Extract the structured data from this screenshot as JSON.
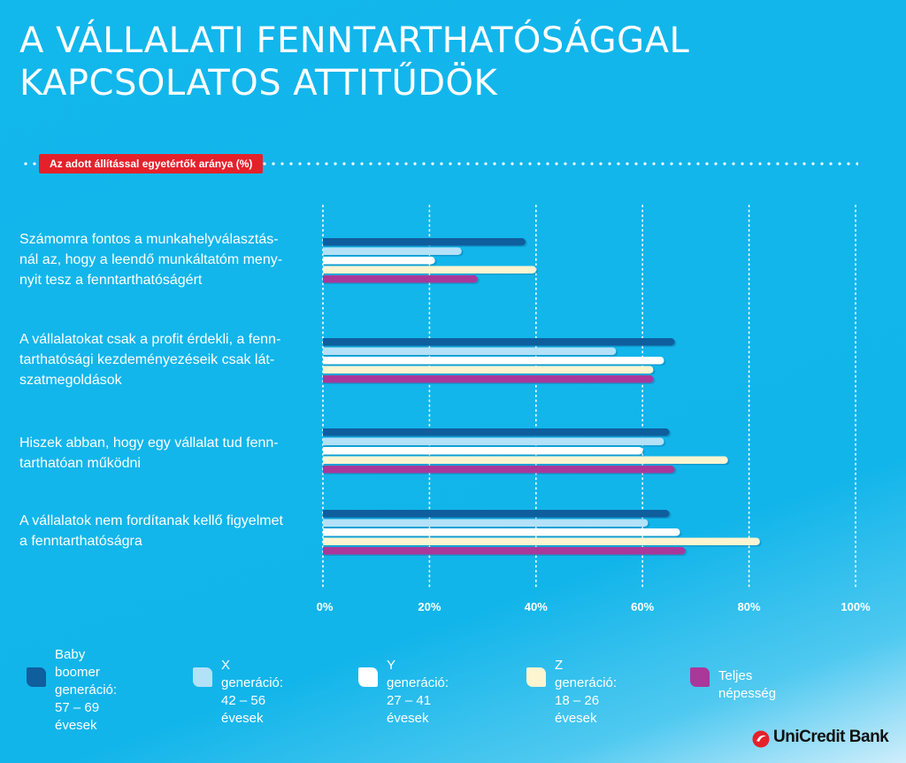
{
  "title": {
    "line1": "A VÁLLALATI FENNTARTHATÓSÁGGAL",
    "line2": "KAPCSOLATOS ATTITŰDÖK"
  },
  "colors": {
    "background": "#12b5ea",
    "accent_red": "#e4212b",
    "series": [
      "#0f5e9e",
      "#b3e1f8",
      "#ffffff",
      "#fdf4d0",
      "#a9389a"
    ]
  },
  "chart_data": {
    "type": "bar",
    "orientation": "horizontal",
    "title": "Az adott állítással egyetértők aránya (%)",
    "xlabel": "",
    "ylabel": "",
    "xlim": [
      0,
      100
    ],
    "ticks": [
      0,
      20,
      40,
      60,
      80,
      100
    ],
    "tick_labels": [
      "0%",
      "20%",
      "40%",
      "60%",
      "80%",
      "100%"
    ],
    "categories": [
      "Számomra fontos a munkahelyválasztás-\nnál az, hogy a leendő munkáltatóm meny-\nnyit tesz a fenntarthatóságért",
      "A vállalatokat csak a profit érdekli, a fenn-\ntarthatósági kezdeményezéseik csak lát-\nszatmegoldások",
      "Hiszek abban, hogy egy vállalat tud fenn-\ntarthatóan működni",
      "A vállalatok nem fordítanak kellő figyelmet\na fenntarthatóságra"
    ],
    "series": [
      {
        "name": "Baby boomer\ngeneráció:\n57 – 69 évesek",
        "values": [
          38,
          66,
          65,
          65
        ]
      },
      {
        "name": "X generáció:\n42 – 56 évesek",
        "values": [
          26,
          55,
          64,
          61
        ]
      },
      {
        "name": "Y generáció:\n27 – 41 évesek",
        "values": [
          21,
          64,
          60,
          67
        ]
      },
      {
        "name": "Z generáció:\n18 – 26 évesek",
        "values": [
          40,
          62,
          76,
          82
        ]
      },
      {
        "name": "Teljes népesség",
        "values": [
          29,
          62,
          66,
          68
        ]
      }
    ]
  },
  "brand": {
    "name": "UniCredit Bank"
  }
}
